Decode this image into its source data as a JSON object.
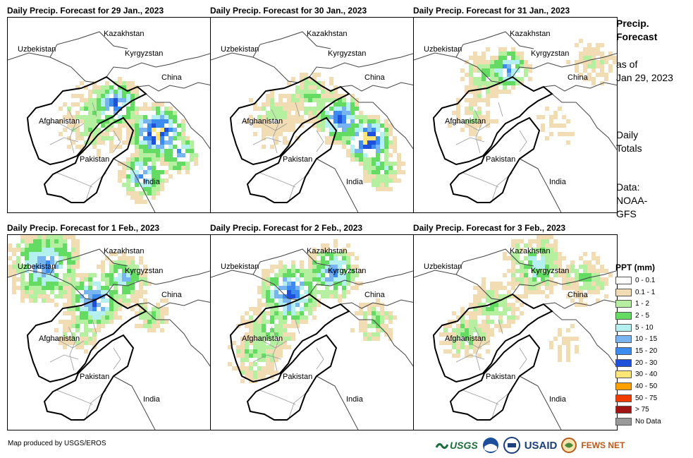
{
  "panels": [
    {
      "title": "Daily Precip. Forecast for 29 Jan., 2023",
      "precip_intensity": "heavy-east"
    },
    {
      "title": "Daily Precip. Forecast for 30 Jan., 2023",
      "precip_intensity": "heavy-central"
    },
    {
      "title": "Daily Precip. Forecast for 31 Jan., 2023",
      "precip_intensity": "light"
    },
    {
      "title": "Daily Precip. Forecast for 1 Feb., 2023",
      "precip_intensity": "north"
    },
    {
      "title": "Daily Precip. Forecast for 2 Feb., 2023",
      "precip_intensity": "north-central"
    },
    {
      "title": "Daily Precip. Forecast for 3 Feb., 2023",
      "precip_intensity": "light-north"
    }
  ],
  "map_labels": {
    "kazakhstan": "Kazakhstan",
    "uzbekistan": "Uzbekistan",
    "kyrgyzstan": "Kyrgyzstan",
    "china": "China",
    "afghanistan": "Afghanistan",
    "pakistan": "Pakistan",
    "india": "India"
  },
  "side_info": {
    "heading_line1": "Precip.",
    "heading_line2": "Forecast",
    "asof_line1": "as of",
    "asof_line2": "Jan 29, 2023",
    "totals_line1": "Daily",
    "totals_line2": "Totals",
    "data_line1": "Data:",
    "data_line2": "NOAA-",
    "data_line3": "GFS"
  },
  "legend": {
    "title": "PPT (mm)",
    "items": [
      {
        "label": "0 - 0.1",
        "color": "#ffffff"
      },
      {
        "label": "0.1 - 1",
        "color": "#f2dcb4"
      },
      {
        "label": "1 - 2",
        "color": "#b4f0a0"
      },
      {
        "label": "2 - 5",
        "color": "#64dc64"
      },
      {
        "label": "5 - 10",
        "color": "#b4f0f0"
      },
      {
        "label": "10 - 15",
        "color": "#78b4f0"
      },
      {
        "label": "15 - 20",
        "color": "#3c8cf0"
      },
      {
        "label": "20 - 30",
        "color": "#1e50dc"
      },
      {
        "label": "30 - 40",
        "color": "#ffe678"
      },
      {
        "label": "40 - 50",
        "color": "#ffa000"
      },
      {
        "label": "50 - 75",
        "color": "#f03c00"
      },
      {
        "label": "> 75",
        "color": "#a01414"
      },
      {
        "label": "No Data",
        "color": "#999999"
      }
    ]
  },
  "footer": {
    "credit": "Map produced by USGS/EROS",
    "logo_usgs": "USGS",
    "logo_usaid": "USAID",
    "logo_fews": "FEWS NET"
  }
}
